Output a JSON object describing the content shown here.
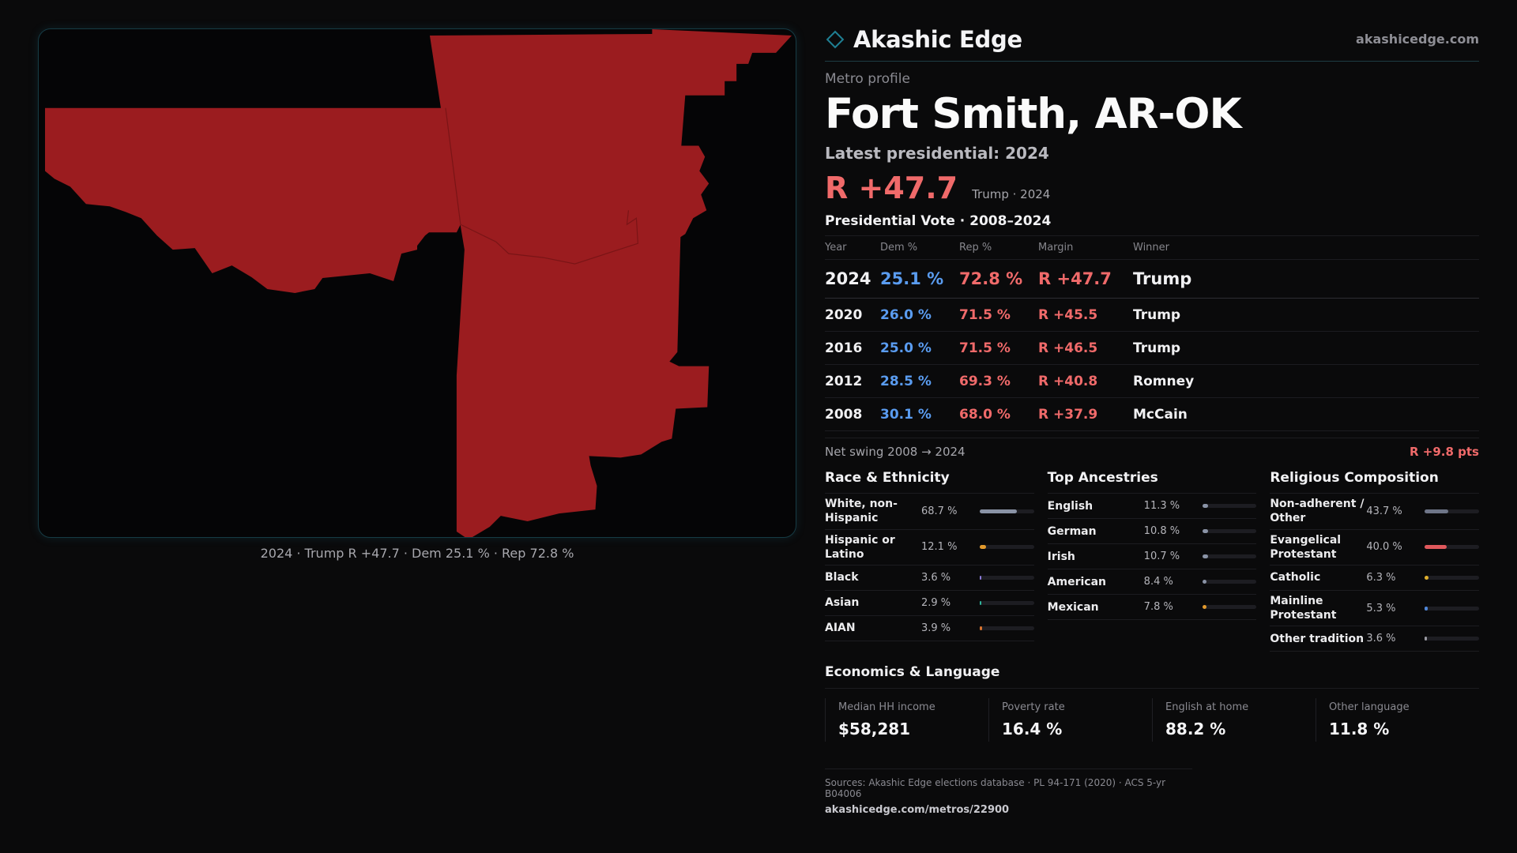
{
  "brand": {
    "name": "Akashic Edge",
    "url": "akashicedge.com",
    "accent": "#1f7f93"
  },
  "map": {
    "caption": "2024 · Trump R +47.7 · Dem 25.1 % · Rep 72.8 %",
    "fill_color": "#9b1c1f"
  },
  "profile": {
    "eyebrow": "Metro profile",
    "title": "Fort Smith, AR-OK",
    "latest_label": "Latest presidential: 2024",
    "headline_margin": "R +47.7",
    "headline_sub": "Trump · 2024"
  },
  "vote": {
    "title": "Presidential Vote · 2008–2024",
    "headers": {
      "year": "Year",
      "dem": "Dem %",
      "rep": "Rep %",
      "margin": "Margin",
      "winner": "Winner"
    },
    "rows": [
      {
        "year": "2024",
        "dem": "25.1 %",
        "rep": "72.8 %",
        "margin": "R +47.7",
        "winner": "Trump"
      },
      {
        "year": "2020",
        "dem": "26.0 %",
        "rep": "71.5 %",
        "margin": "R +45.5",
        "winner": "Trump"
      },
      {
        "year": "2016",
        "dem": "25.0 %",
        "rep": "71.5 %",
        "margin": "R +46.5",
        "winner": "Trump"
      },
      {
        "year": "2012",
        "dem": "28.5 %",
        "rep": "69.3 %",
        "margin": "R +40.8",
        "winner": "Romney"
      },
      {
        "year": "2008",
        "dem": "30.1 %",
        "rep": "68.0 %",
        "margin": "R +37.9",
        "winner": "McCain"
      }
    ],
    "swing_label": "Net swing 2008 → 2024",
    "swing_value": "R +9.8 pts"
  },
  "race": {
    "title": "Race & Ethnicity",
    "items": [
      {
        "name": "White, non-Hispanic",
        "pct": "68.7 %",
        "fraction": 0.687,
        "color": "#8a93a6"
      },
      {
        "name": "Hispanic or Latino",
        "pct": "12.1 %",
        "fraction": 0.121,
        "color": "#e39a2d"
      },
      {
        "name": "Black",
        "pct": "3.6 %",
        "fraction": 0.036,
        "color": "#8b7ad8"
      },
      {
        "name": "Asian",
        "pct": "2.9 %",
        "fraction": 0.029,
        "color": "#2fb39a"
      },
      {
        "name": "AIAN",
        "pct": "3.9 %",
        "fraction": 0.039,
        "color": "#d9742f"
      }
    ]
  },
  "ancestry": {
    "title": "Top Ancestries",
    "items": [
      {
        "name": "English",
        "pct": "11.3 %",
        "fraction": 0.113,
        "color": "#8a93a6"
      },
      {
        "name": "German",
        "pct": "10.8 %",
        "fraction": 0.108,
        "color": "#8a93a6"
      },
      {
        "name": "Irish",
        "pct": "10.7 %",
        "fraction": 0.107,
        "color": "#8a93a6"
      },
      {
        "name": "American",
        "pct": "8.4 %",
        "fraction": 0.084,
        "color": "#8a93a6"
      },
      {
        "name": "Mexican",
        "pct": "7.8 %",
        "fraction": 0.078,
        "color": "#e39a2d"
      }
    ]
  },
  "religion": {
    "title": "Religious Composition",
    "items": [
      {
        "name": "Non-adherent / Other",
        "pct": "43.7 %",
        "fraction": 0.437,
        "color": "#6e7588"
      },
      {
        "name": "Evangelical Protestant",
        "pct": "40.0 %",
        "fraction": 0.4,
        "color": "#e0585c"
      },
      {
        "name": "Catholic",
        "pct": "6.3 %",
        "fraction": 0.063,
        "color": "#e0b02d"
      },
      {
        "name": "Mainline Protestant",
        "pct": "5.3 %",
        "fraction": 0.053,
        "color": "#4f86d8"
      },
      {
        "name": "Other tradition",
        "pct": "3.6 %",
        "fraction": 0.036,
        "color": "#9a9aa2"
      }
    ]
  },
  "economics": {
    "title": "Economics & Language",
    "cells": [
      {
        "label": "Median HH income",
        "value": "$58,281"
      },
      {
        "label": "Poverty rate",
        "value": "16.4 %"
      },
      {
        "label": "English at home",
        "value": "88.2 %"
      },
      {
        "label": "Other language",
        "value": "11.8 %"
      }
    ]
  },
  "sources": {
    "line": "Sources: Akashic Edge elections database · PL 94-171 (2020) · ACS 5-yr B04006",
    "url": "akashicedge.com/metros/22900"
  }
}
